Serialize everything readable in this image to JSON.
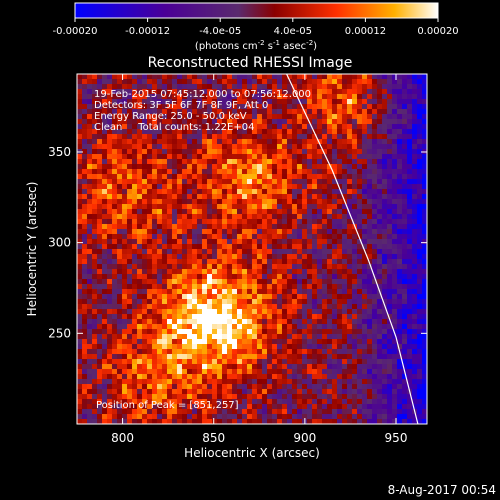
{
  "colorbar": {
    "ticks": [
      "-0.00020",
      "-0.00012",
      "-4.0e-05",
      "4.0e-05",
      "0.00012",
      "0.00020"
    ],
    "tick_values": [
      -0.0002,
      -0.00012,
      -4e-05,
      4e-05,
      0.00012,
      0.0002
    ],
    "range": [
      -0.0002,
      0.0002
    ],
    "unit_base": "(photons cm",
    "unit_exp1": "-2",
    "unit_mid": " s",
    "unit_exp2": "-1",
    "unit_mid2": " asec",
    "unit_exp3": "-2",
    "unit_end": ")"
  },
  "footer": {
    "timestamp": "8-Aug-2017 00:54"
  },
  "chart_data": {
    "type": "heatmap",
    "title": "Reconstructed RHESSI Image",
    "xlabel": "Heliocentric X (arcsec)",
    "ylabel": "Heliocentric Y (arcsec)",
    "xlim": [
      775,
      967
    ],
    "ylim": [
      200,
      393
    ],
    "xticks": [
      800,
      850,
      900,
      950
    ],
    "yticks": [
      250,
      300,
      350
    ],
    "annotations": {
      "line1": "19-Feb-2015 07:45:12.000 to 07:56:12.000",
      "line2": "Detectors: 3F 5F 6F 7F 8F 9F, Att 0",
      "line3": "Energy Range: 25.0 - 50.0 keV",
      "line4": "Clean     Total counts: 1.22E+04",
      "peak": "Position of Peak = [851,257]"
    },
    "peak_position": [
      851,
      257
    ],
    "sources": [
      {
        "x": 851,
        "y": 257,
        "amplitude": 0.0002,
        "sigma": 22
      },
      {
        "x": 870,
        "y": 335,
        "amplitude": 0.00012,
        "sigma": 20
      },
      {
        "x": 800,
        "y": 330,
        "amplitude": 9e-05,
        "sigma": 22
      },
      {
        "x": 925,
        "y": 380,
        "amplitude": 0.0001,
        "sigma": 18
      },
      {
        "x": 815,
        "y": 225,
        "amplitude": 8e-05,
        "sigma": 20
      }
    ],
    "limb_curve": [
      [
        890,
        393
      ],
      [
        915,
        340
      ],
      [
        935,
        290
      ],
      [
        950,
        248
      ],
      [
        962,
        200
      ]
    ],
    "colormap": "blue-purple-red-yellow-white"
  }
}
